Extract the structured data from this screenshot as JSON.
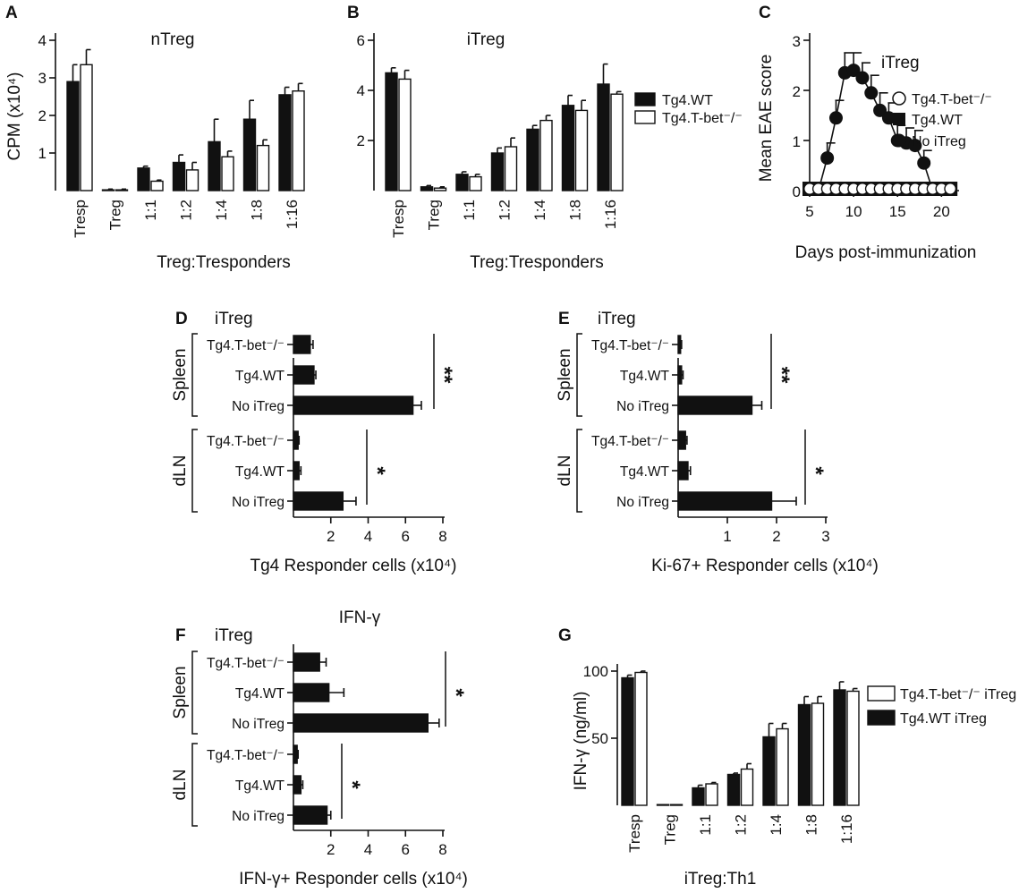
{
  "colors": {
    "filled": "#111111",
    "open": "#ffffff",
    "stroke": "#111111"
  },
  "chart_data": [
    {
      "id": "A",
      "type": "bar",
      "panel_label": "A",
      "title": "nTreg",
      "ylabel": "CPM (x10⁴)",
      "xlabel": "Treg:Tresponders",
      "ylim": [
        0,
        4
      ],
      "yticks": [
        "1",
        "2",
        "3",
        "4"
      ],
      "categories": [
        "Tresp",
        "Treg",
        "1:1",
        "1:2",
        "1:4",
        "1:8",
        "1:16"
      ],
      "series": [
        {
          "name": "Tg4.WT",
          "fill": "filled",
          "values": [
            2.9,
            0.02,
            0.6,
            0.75,
            1.3,
            1.9,
            2.55
          ],
          "errors": [
            0.45,
            0.02,
            0.05,
            0.2,
            0.6,
            0.5,
            0.2
          ]
        },
        {
          "name": "Tg4.T-bet⁻/⁻",
          "fill": "open",
          "values": [
            3.35,
            0.02,
            0.25,
            0.55,
            0.9,
            1.2,
            2.65
          ],
          "errors": [
            0.4,
            0.02,
            0.03,
            0.2,
            0.15,
            0.15,
            0.2
          ]
        }
      ]
    },
    {
      "id": "B",
      "type": "bar",
      "panel_label": "B",
      "title": "iTreg",
      "ylabel": "",
      "xlabel": "Treg:Tresponders",
      "ylim": [
        0,
        6
      ],
      "yticks": [
        "2",
        "4",
        "6"
      ],
      "categories": [
        "Tresp",
        "Treg",
        "1:1",
        "1:2",
        "1:4",
        "1:8",
        "1:16"
      ],
      "legend": [
        "Tg4.WT",
        "Tg4.T-bet⁻/⁻"
      ],
      "series": [
        {
          "name": "Tg4.WT",
          "fill": "filled",
          "values": [
            4.7,
            0.15,
            0.65,
            1.5,
            2.45,
            3.4,
            4.25
          ],
          "errors": [
            0.2,
            0.05,
            0.1,
            0.2,
            0.15,
            0.4,
            0.8
          ]
        },
        {
          "name": "Tg4.T-bet⁻/⁻",
          "fill": "open",
          "values": [
            4.45,
            0.1,
            0.55,
            1.75,
            2.8,
            3.2,
            3.85
          ],
          "errors": [
            0.35,
            0.05,
            0.1,
            0.35,
            0.2,
            0.4,
            0.1
          ]
        }
      ]
    },
    {
      "id": "C",
      "type": "line",
      "panel_label": "C",
      "title": "iTreg",
      "ylabel": "Mean EAE score",
      "xlabel": "Days post-immunization",
      "xlim": [
        5,
        22
      ],
      "ylim": [
        0,
        3
      ],
      "xticks": [
        "5",
        "10",
        "15",
        "20"
      ],
      "yticks": [
        "0",
        "1",
        "2",
        "3"
      ],
      "legend": [
        "Tg4.T-bet⁻/⁻",
        "Tg4.WT",
        "No iTreg"
      ],
      "series": [
        {
          "name": "No iTreg",
          "marker": "filled-circle",
          "x": [
            6,
            7,
            8,
            9,
            10,
            11,
            12,
            13,
            14,
            15,
            16,
            17,
            18
          ],
          "y": [
            0,
            0.65,
            1.45,
            2.35,
            2.4,
            2.25,
            1.95,
            1.6,
            1.45,
            1.0,
            0.95,
            0.9,
            0.55
          ],
          "errors": [
            0,
            0.3,
            0.35,
            0.4,
            0.35,
            0.3,
            0.35,
            0.35,
            0.3,
            0.3,
            0.3,
            0.3,
            0.25
          ],
          "fit_x": [
            6,
            7,
            8,
            9,
            10,
            11,
            12,
            13,
            14,
            15,
            16,
            17,
            18,
            19
          ],
          "fit_y": [
            0,
            0.65,
            1.45,
            2.35,
            2.4,
            2.25,
            1.95,
            1.6,
            1.45,
            1.0,
            0.95,
            0.9,
            0.55,
            0
          ]
        },
        {
          "name": "Tg4.T-bet⁻/⁻",
          "marker": "open-circle",
          "x": [
            5,
            6,
            7,
            8,
            9,
            10,
            11,
            12,
            13,
            14,
            15,
            16,
            17,
            18,
            19,
            20,
            21
          ],
          "y": [
            0,
            0,
            0,
            0,
            0,
            0,
            0,
            0,
            0,
            0,
            0,
            0,
            0,
            0,
            0,
            0,
            0
          ]
        },
        {
          "name": "Tg4.WT",
          "marker": "filled-square",
          "x": [
            5,
            6,
            7,
            8,
            9,
            10,
            11,
            12,
            13,
            14,
            15,
            16,
            17,
            18,
            19,
            20,
            21
          ],
          "y": [
            0,
            0,
            0,
            0,
            0,
            0,
            0,
            0,
            0,
            0,
            0,
            0,
            0,
            0,
            0,
            0,
            0
          ]
        }
      ]
    },
    {
      "id": "D",
      "type": "bar",
      "orientation": "horizontal",
      "panel_label": "D",
      "title": "iTreg",
      "xlabel": "Tg4 Responder cells  (x10⁴)",
      "xlim": [
        0,
        8
      ],
      "xticks": [
        "2",
        "4",
        "6",
        "8"
      ],
      "groups": [
        {
          "name": "Spleen",
          "rows": [
            "Tg4.T-bet⁻/⁻",
            "Tg4.WT",
            "No iTreg"
          ],
          "values": [
            0.9,
            1.1,
            6.4
          ],
          "errors": [
            0.15,
            0.1,
            0.45
          ],
          "sig": "**"
        },
        {
          "name": "dLN",
          "rows": [
            "Tg4.T-bet⁻/⁻",
            "Tg4.WT",
            "No iTreg"
          ],
          "values": [
            0.25,
            0.3,
            2.65
          ],
          "errors": [
            0.05,
            0.1,
            0.7
          ],
          "sig": "*"
        }
      ]
    },
    {
      "id": "E",
      "type": "bar",
      "orientation": "horizontal",
      "panel_label": "E",
      "title": "iTreg",
      "xlabel": "Ki-67+ Responder cells  (x10⁴)",
      "xlim": [
        0,
        3
      ],
      "xticks": [
        "1",
        "2",
        "3"
      ],
      "groups": [
        {
          "name": "Spleen",
          "rows": [
            "Tg4.T-bet⁻/⁻",
            "Tg4.WT",
            "No iTreg"
          ],
          "values": [
            0.05,
            0.07,
            1.5
          ],
          "errors": [
            0.02,
            0.03,
            0.2
          ],
          "sig": "**"
        },
        {
          "name": "dLN",
          "rows": [
            "Tg4.T-bet⁻/⁻",
            "Tg4.WT",
            "No iTreg"
          ],
          "values": [
            0.15,
            0.2,
            1.9
          ],
          "errors": [
            0.03,
            0.05,
            0.5
          ],
          "sig": "*"
        }
      ]
    },
    {
      "id": "F",
      "type": "bar",
      "orientation": "horizontal",
      "panel_label": "F",
      "title": "iTreg",
      "subtitle": "IFN-γ",
      "xlabel": "IFN-γ+ Responder cells (x10⁴)",
      "xlim": [
        0,
        8
      ],
      "xticks": [
        "2",
        "4",
        "6",
        "8"
      ],
      "groups": [
        {
          "name": "Spleen",
          "rows": [
            "Tg4.T-bet⁻/⁻",
            "Tg4.WT",
            "No iTreg"
          ],
          "values": [
            1.4,
            1.9,
            7.2
          ],
          "errors": [
            0.35,
            0.8,
            0.6
          ],
          "sig": "*"
        },
        {
          "name": "dLN",
          "rows": [
            "Tg4.T-bet⁻/⁻",
            "Tg4.WT",
            "No iTreg"
          ],
          "values": [
            0.2,
            0.4,
            1.8
          ],
          "errors": [
            0.05,
            0.1,
            0.2
          ],
          "sig": "*"
        }
      ]
    },
    {
      "id": "G",
      "type": "bar",
      "panel_label": "G",
      "ylabel": "IFN-γ (ng/ml)",
      "xlabel": "iTreg:Th1",
      "ylim": [
        0,
        100
      ],
      "yticks": [
        "50",
        "100"
      ],
      "categories": [
        "Tresp",
        "Treg",
        "1:1",
        "1:2",
        "1:4",
        "1:8",
        "1:16"
      ],
      "legend": [
        "Tg4.T-bet⁻/⁻ iTreg",
        "Tg4.WT iTreg"
      ],
      "series": [
        {
          "name": "Tg4.WT iTreg",
          "fill": "filled",
          "values": [
            95,
            0,
            13,
            23,
            51,
            75,
            86
          ],
          "errors": [
            2,
            0,
            2,
            1,
            10,
            6,
            6
          ]
        },
        {
          "name": "Tg4.T-bet⁻/⁻ iTreg",
          "fill": "open",
          "values": [
            99,
            0,
            16,
            27,
            57,
            76,
            85
          ],
          "errors": [
            1,
            0,
            1,
            4,
            4,
            5,
            2
          ]
        }
      ]
    }
  ]
}
